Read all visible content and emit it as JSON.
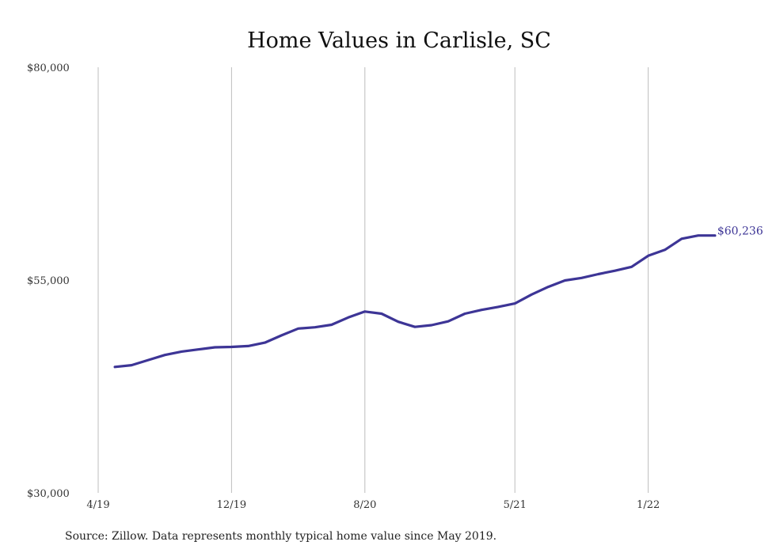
{
  "chart_data": {
    "type": "line",
    "title": "Home Values in Carlisle, SC",
    "source": "Source: Zillow. Data represents monthly typical home value since May 2019.",
    "ylim": [
      30000,
      80000
    ],
    "y_ticks": [
      "$80,000",
      "$55,000",
      "$30,000"
    ],
    "y_tick_values": [
      80000,
      55000,
      30000
    ],
    "x_ticks": [
      "4/19",
      "12/19",
      "8/20",
      "5/21",
      "1/22"
    ],
    "x_tick_dates": [
      "2019-04",
      "2019-12",
      "2020-08",
      "2021-05",
      "2022-01"
    ],
    "grid": "vertical",
    "end_label": "$60,236",
    "series_color": "#3d3596",
    "series": [
      {
        "x": [
          "2019-05",
          "2019-06",
          "2019-07",
          "2019-08",
          "2019-09",
          "2019-10",
          "2019-11",
          "2019-12",
          "2020-01",
          "2020-02",
          "2020-03",
          "2020-04",
          "2020-05",
          "2020-06",
          "2020-07",
          "2020-08",
          "2020-09",
          "2020-10",
          "2020-11",
          "2020-12",
          "2021-01",
          "2021-02",
          "2021-03",
          "2021-04",
          "2021-05",
          "2021-06",
          "2021-07",
          "2021-08",
          "2021-09",
          "2021-10",
          "2021-11",
          "2021-12",
          "2022-01",
          "2022-02",
          "2022-03",
          "2022-04",
          "2022-05"
        ],
        "values": [
          44800,
          45000,
          45600,
          46200,
          46600,
          46850,
          47100,
          47150,
          47250,
          47650,
          48500,
          49300,
          49450,
          49750,
          50600,
          51300,
          51050,
          50100,
          49500,
          49700,
          50150,
          51050,
          51500,
          51850,
          52250,
          53300,
          54200,
          54950,
          55250,
          55700,
          56100,
          56550,
          57850,
          58550,
          59850,
          60236,
          60236
        ]
      }
    ]
  }
}
